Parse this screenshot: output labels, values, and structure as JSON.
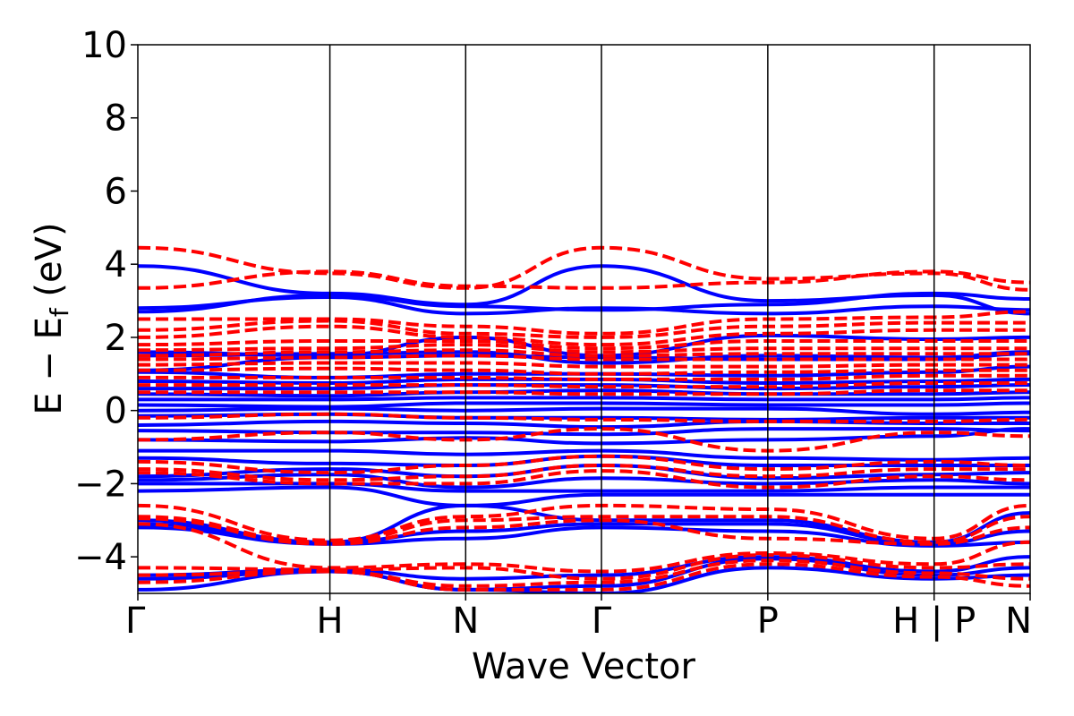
{
  "chart_data": {
    "type": "line",
    "xlabel": "Wave Vector",
    "ylabel": "E − E",
    "ylabel_sub": "f",
    "ylabel_unit": " (eV)",
    "ylim": [
      -5,
      10
    ],
    "yticks": [
      -4,
      -2,
      0,
      2,
      4,
      6,
      8,
      10
    ],
    "ytick_labels": [
      "−4",
      "−2",
      "0",
      "2",
      "4",
      "6",
      "8",
      "10"
    ],
    "kpoints": [
      {
        "label": "Γ",
        "x": 0.0
      },
      {
        "label": "H",
        "x": 1.0
      },
      {
        "label": "N",
        "x": 1.707
      },
      {
        "label": "Γ",
        "x": 2.414
      },
      {
        "label": "P",
        "x": 3.28
      },
      {
        "label": "H | P",
        "x": 4.146
      },
      {
        "label": "N",
        "x": 4.646
      }
    ],
    "xlim": [
      0,
      4.646
    ],
    "grid": false,
    "series": [
      {
        "style": "solid",
        "color": "#0000ff",
        "bands": [
          [
            3.95,
            3.2,
            2.9,
            3.95,
            3.0,
            3.15,
            2.65
          ],
          [
            2.8,
            3.1,
            2.65,
            2.8,
            2.65,
            2.85,
            2.75
          ],
          [
            2.7,
            3.15,
            2.85,
            2.75,
            2.9,
            3.2,
            3.05
          ],
          [
            1.6,
            1.5,
            2.0,
            1.5,
            2.05,
            1.95,
            2.0
          ],
          [
            1.5,
            1.55,
            1.6,
            1.3,
            1.5,
            1.45,
            1.6
          ],
          [
            1.1,
            1.45,
            1.5,
            1.45,
            1.4,
            1.4,
            1.55
          ],
          [
            1.05,
            0.9,
            1.0,
            1.0,
            0.95,
            1.05,
            1.2
          ],
          [
            0.8,
            0.75,
            0.85,
            0.85,
            0.75,
            0.8,
            0.85
          ],
          [
            0.6,
            0.6,
            0.7,
            0.7,
            0.6,
            0.65,
            0.7
          ],
          [
            0.45,
            0.4,
            0.5,
            0.55,
            0.45,
            0.45,
            0.5
          ],
          [
            0.3,
            0.3,
            0.35,
            0.35,
            0.3,
            0.3,
            0.35
          ],
          [
            0.15,
            0.1,
            0.2,
            0.2,
            0.15,
            0.15,
            0.2
          ],
          [
            0.0,
            0.05,
            0.0,
            0.05,
            0.05,
            -0.1,
            -0.05
          ],
          [
            -0.15,
            -0.1,
            -0.2,
            -0.2,
            -0.25,
            -0.2,
            -0.2
          ],
          [
            -0.4,
            -0.3,
            -0.35,
            -0.45,
            -0.3,
            -0.35,
            -0.35
          ],
          [
            -0.55,
            -0.6,
            -0.6,
            -0.65,
            -0.5,
            -0.5,
            -0.55
          ],
          [
            -0.8,
            -0.85,
            -0.75,
            -0.9,
            -0.8,
            -0.7,
            -0.5
          ],
          [
            -1.1,
            -1.1,
            -1.2,
            -1.1,
            -1.3,
            -1.35,
            -1.3
          ],
          [
            -1.3,
            -1.45,
            -1.5,
            -1.25,
            -1.5,
            -1.5,
            -1.5
          ],
          [
            -1.8,
            -1.6,
            -1.8,
            -1.5,
            -1.85,
            -1.75,
            -1.7
          ],
          [
            -1.9,
            -1.75,
            -2.1,
            -1.85,
            -2.0,
            -1.9,
            -2.0
          ],
          [
            -2.0,
            -2.0,
            -2.2,
            -2.2,
            -2.2,
            -2.1,
            -2.1
          ],
          [
            -2.2,
            -2.1,
            -2.6,
            -2.3,
            -2.3,
            -2.3,
            -2.3
          ],
          [
            -3.0,
            -3.6,
            -2.6,
            -3.0,
            -3.0,
            -3.6,
            -2.8
          ],
          [
            -3.1,
            -3.6,
            -3.3,
            -3.1,
            -3.1,
            -3.65,
            -3.3
          ],
          [
            -3.2,
            -3.65,
            -3.5,
            -3.2,
            -3.3,
            -3.7,
            -3.6
          ],
          [
            -4.5,
            -4.35,
            -4.6,
            -4.5,
            -4.0,
            -4.4,
            -4.0
          ],
          [
            -4.6,
            -4.4,
            -4.9,
            -4.8,
            -4.05,
            -4.5,
            -4.3
          ],
          [
            -4.9,
            -4.4,
            -4.9,
            -5.0,
            -4.3,
            -4.6,
            -4.5
          ]
        ]
      },
      {
        "style": "dashed",
        "color": "#ff0000",
        "bands": [
          [
            4.45,
            3.75,
            3.35,
            4.45,
            3.6,
            3.75,
            3.3
          ],
          [
            3.35,
            3.8,
            3.4,
            3.35,
            3.5,
            3.8,
            3.5
          ],
          [
            2.5,
            2.5,
            2.3,
            2.1,
            2.5,
            2.55,
            2.7
          ],
          [
            2.2,
            2.45,
            2.1,
            2.0,
            2.3,
            2.4,
            2.4
          ],
          [
            2.0,
            2.3,
            2.0,
            1.8,
            2.1,
            2.2,
            2.2
          ],
          [
            1.8,
            1.9,
            1.9,
            1.7,
            1.9,
            1.9,
            1.9
          ],
          [
            1.65,
            1.7,
            1.8,
            1.6,
            1.7,
            1.7,
            1.7
          ],
          [
            1.5,
            1.6,
            1.65,
            1.5,
            1.55,
            1.55,
            1.55
          ],
          [
            1.4,
            1.45,
            1.5,
            1.4,
            1.4,
            1.4,
            1.4
          ],
          [
            1.25,
            1.3,
            1.3,
            1.2,
            1.2,
            1.25,
            1.25
          ],
          [
            1.1,
            1.15,
            1.1,
            1.0,
            1.05,
            1.1,
            1.1
          ],
          [
            0.9,
            0.9,
            0.9,
            0.85,
            0.85,
            0.95,
            0.95
          ],
          [
            0.7,
            0.7,
            0.7,
            0.65,
            0.65,
            0.75,
            0.75
          ],
          [
            0.5,
            0.5,
            0.5,
            0.45,
            0.45,
            0.55,
            0.55
          ],
          [
            -0.2,
            -0.1,
            -0.2,
            -0.25,
            -0.3,
            -0.3,
            -0.25
          ],
          [
            -0.8,
            -0.6,
            -0.8,
            -0.5,
            -1.1,
            -0.6,
            -0.7
          ],
          [
            -1.4,
            -1.7,
            -1.5,
            -1.25,
            -1.6,
            -1.4,
            -1.5
          ],
          [
            -1.6,
            -1.9,
            -1.8,
            -1.5,
            -1.8,
            -1.6,
            -1.6
          ],
          [
            -1.7,
            -2.0,
            -2.0,
            -1.65,
            -2.1,
            -1.8,
            -1.9
          ],
          [
            -2.6,
            -3.55,
            -2.9,
            -2.6,
            -2.7,
            -3.5,
            -2.6
          ],
          [
            -2.9,
            -3.6,
            -3.0,
            -2.9,
            -2.9,
            -3.6,
            -2.9
          ],
          [
            -2.95,
            -3.65,
            -3.2,
            -3.0,
            -3.5,
            -3.65,
            -3.2
          ],
          [
            -3.1,
            -4.3,
            -4.2,
            -4.4,
            -3.9,
            -4.2,
            -3.6
          ],
          [
            -4.3,
            -4.35,
            -4.3,
            -4.6,
            -3.95,
            -4.3,
            -4.2
          ],
          [
            -4.5,
            -4.4,
            -4.8,
            -4.7,
            -4.1,
            -4.45,
            -4.6
          ],
          [
            -4.7,
            -4.4,
            -4.9,
            -4.9,
            -4.2,
            -4.55,
            -4.8
          ]
        ]
      }
    ]
  }
}
